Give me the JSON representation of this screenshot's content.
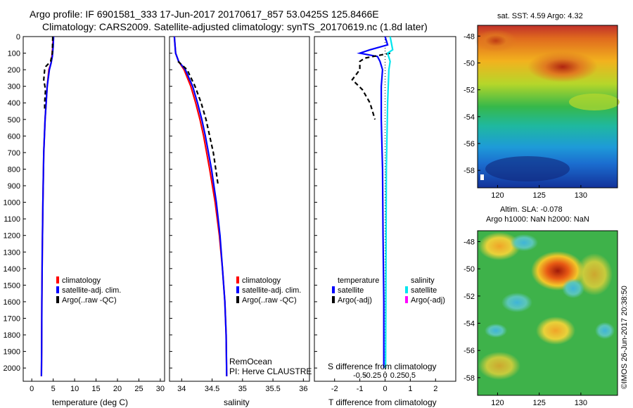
{
  "header": {
    "title_line1": "Argo profile: IF 6901581_333 17-Jun-2017 20170617_857 53.0425S 125.8466E",
    "title_line2": "Climatology: CARS2009. Satellite-adjusted climatology: synTS_20170619.nc (1.8d later)"
  },
  "colors": {
    "climatology": "#ff0000",
    "satellite": "#0000ff",
    "argo": "#000000",
    "salinity_sat": "#00e5ee",
    "salinity_argo": "#ff00ff"
  },
  "chart_data": [
    {
      "type": "line",
      "panel": "temperature",
      "xlabel": "temperature (deg C)",
      "ylabel": "",
      "xlim": [
        -2,
        31
      ],
      "ylim": [
        2080,
        0
      ],
      "xticks": [
        0,
        5,
        10,
        15,
        20,
        25,
        30
      ],
      "yticks": [
        0,
        100,
        200,
        300,
        400,
        500,
        600,
        700,
        800,
        900,
        1000,
        1100,
        1200,
        1300,
        1400,
        1500,
        1600,
        1700,
        1800,
        1900,
        2000
      ],
      "legend": [
        "climatology",
        "satellite-adj. clim.",
        "Argo(..raw -QC)"
      ],
      "series": [
        {
          "name": "climatology",
          "y": [
            0,
            60,
            120,
            160,
            200,
            300,
            500,
            700,
            1000,
            1300,
            1600,
            1900,
            2050
          ],
          "values": [
            5.0,
            4.9,
            4.7,
            4.5,
            4.0,
            3.6,
            3.1,
            2.8,
            2.6,
            2.45,
            2.35,
            2.3,
            2.25
          ]
        },
        {
          "name": "satellite-adj. clim.",
          "y": [
            0,
            60,
            120,
            160,
            200,
            300,
            500,
            700,
            1000,
            1300,
            1600,
            1900,
            2050
          ],
          "values": [
            5.1,
            5.0,
            4.8,
            4.5,
            4.1,
            3.6,
            3.1,
            2.8,
            2.6,
            2.45,
            2.35,
            2.3,
            2.25
          ]
        },
        {
          "name": "Argo(..raw -QC)",
          "y": [
            0,
            100,
            150,
            180,
            200,
            260,
            320,
            400,
            440
          ],
          "values": [
            4.9,
            4.8,
            4.4,
            3.3,
            3.0,
            2.8,
            3.2,
            3.0,
            3.0
          ]
        }
      ]
    },
    {
      "type": "line",
      "panel": "salinity",
      "xlabel": "salinity",
      "xlim": [
        33.8,
        36.1
      ],
      "ylim": [
        2080,
        0
      ],
      "xticks": [
        34,
        34.5,
        35,
        35.5,
        36
      ],
      "tick_labels": [
        "34",
        "34.5",
        "35",
        "35.5",
        "36"
      ],
      "legend": [
        "climatology",
        "satellite-adj. clim.",
        "Argo(..raw -QC)"
      ],
      "annotation": [
        "RemOcean",
        "PI: Herve CLAUSTRE"
      ],
      "series": [
        {
          "name": "climatology",
          "y": [
            0,
            100,
            150,
            200,
            300,
            400,
            500,
            600,
            800,
            1000,
            1200,
            1400,
            1600,
            1800,
            2050
          ],
          "values": [
            33.88,
            33.9,
            33.95,
            34.04,
            34.15,
            34.23,
            34.3,
            34.36,
            34.46,
            34.55,
            34.62,
            34.67,
            34.71,
            34.73,
            34.74
          ]
        },
        {
          "name": "satellite-adj. clim.",
          "y": [
            0,
            100,
            150,
            200,
            300,
            400,
            500,
            600,
            800,
            1000,
            1200,
            1400,
            1600,
            1800,
            2050
          ],
          "values": [
            33.88,
            33.9,
            33.95,
            34.06,
            34.18,
            34.26,
            34.33,
            34.39,
            34.49,
            34.57,
            34.63,
            34.67,
            34.71,
            34.73,
            34.74
          ]
        },
        {
          "name": "Argo(..raw -QC)",
          "y": [
            150,
            200,
            300,
            400,
            500,
            600,
            700,
            800,
            900
          ],
          "values": [
            33.94,
            34.09,
            34.22,
            34.32,
            34.4,
            34.46,
            34.52,
            34.56,
            34.6
          ]
        }
      ]
    },
    {
      "type": "line",
      "panel": "difference",
      "xlabel": "T difference from climatology",
      "xlabel_top": "S difference from climatology",
      "xlim": [
        -2.8,
        2.8
      ],
      "ylim": [
        2080,
        0
      ],
      "xticks_T": [
        -2,
        -1,
        0,
        1,
        2
      ],
      "xticks_S": [
        "-0.5",
        "-0.25",
        "0",
        "0.25",
        "0.5"
      ],
      "legend_temperature_title": "temperature",
      "legend_salinity_title": "salinity",
      "legend_temperature": [
        "satellite",
        "Argo(-adj)"
      ],
      "legend_salinity": [
        "satellite",
        "Argo(-adj)"
      ],
      "series": [
        {
          "name": "temperature satellite",
          "y": [
            0,
            50,
            80,
            100,
            120,
            150,
            200,
            300,
            500,
            800,
            1200,
            1600,
            2000
          ],
          "values": [
            0.0,
            0.1,
            -0.6,
            -1.0,
            -0.3,
            -0.2,
            -0.1,
            -0.15,
            -0.15,
            -0.1,
            -0.08,
            -0.05,
            -0.05
          ]
        },
        {
          "name": "temperature Argo(-adj)",
          "y": [
            100,
            130,
            150,
            200,
            260,
            320,
            400,
            450,
            500
          ],
          "values": [
            0.2,
            -0.8,
            -1.0,
            -1.0,
            -1.3,
            -0.9,
            -0.6,
            -0.5,
            -0.4
          ]
        },
        {
          "name": "salinity satellite",
          "y": [
            0,
            80,
            100,
            150,
            200,
            400,
            800,
            1200,
            1600,
            2000
          ],
          "values": [
            0.2,
            0.3,
            0.1,
            0.2,
            0.15,
            0.1,
            0.05,
            0.04,
            0.03,
            0.02
          ]
        },
        {
          "name": "salinity Argo(-adj)",
          "y": [],
          "values": []
        }
      ]
    },
    {
      "type": "heatmap",
      "panel": "SST map",
      "title": "sat. SST: 4.59 Argo: 4.32",
      "xticks": [
        120,
        125,
        130
      ],
      "yticks": [
        -48,
        -50,
        -52,
        -54,
        -56,
        -58
      ]
    },
    {
      "type": "heatmap",
      "panel": "SLA map",
      "title_line1": "Altim. SLA: -0.078",
      "title_line2": "Argo h1000: NaN h2000: NaN",
      "xticks": [
        120,
        125,
        130
      ],
      "yticks": [
        -48,
        -50,
        -52,
        -54,
        -56,
        -58
      ],
      "credit": "©IMOS 26-Jun-2017 20:38:50"
    }
  ]
}
